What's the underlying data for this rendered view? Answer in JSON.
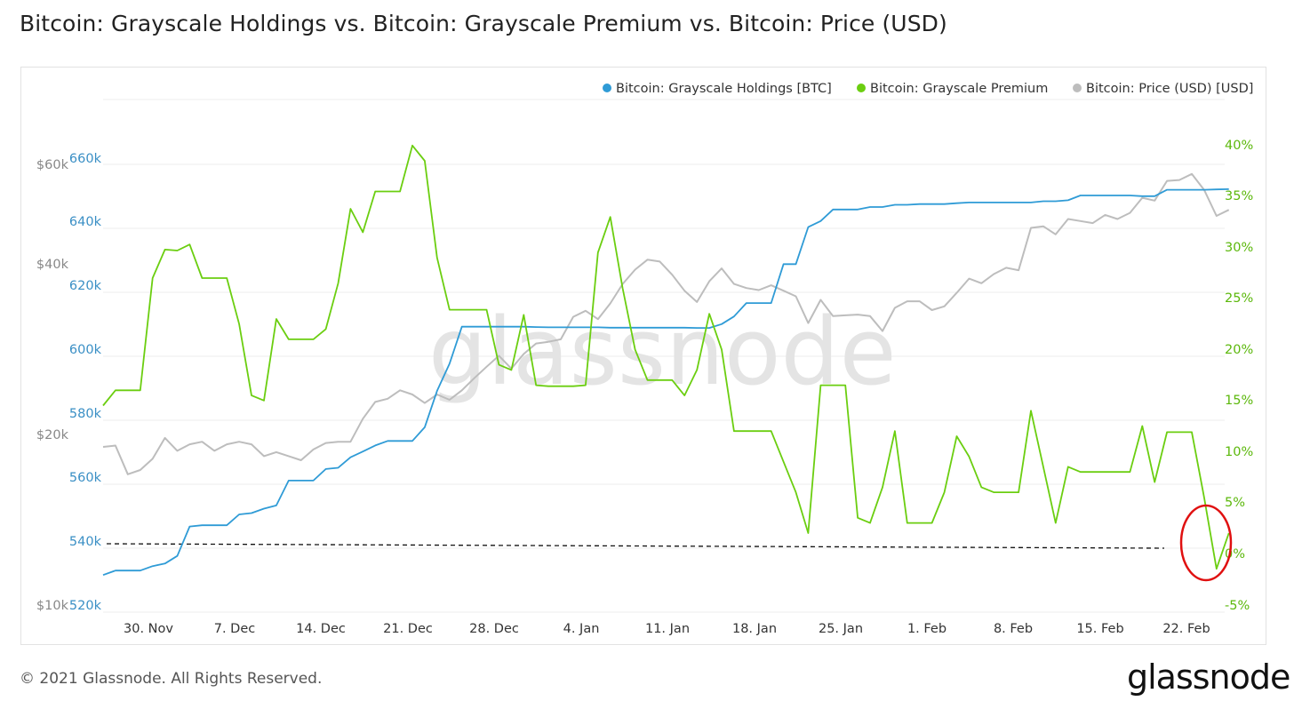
{
  "page": {
    "title": "Bitcoin: Grayscale Holdings vs. Bitcoin: Grayscale Premium vs. Bitcoin: Price (USD)",
    "copyright": "© 2021 Glassnode. All Rights Reserved.",
    "logo": "glassnode",
    "watermark": "glassnode"
  },
  "chart_data": {
    "type": "line",
    "title": "Bitcoin: Grayscale Holdings vs. Bitcoin: Grayscale Premium vs. Bitcoin: Price (USD)",
    "x_tick_labels": [
      "30. Nov",
      "7. Dec",
      "14. Dec",
      "21. Dec",
      "28. Dec",
      "4. Jan",
      "11. Jan",
      "18. Jan",
      "25. Jan",
      "1. Feb",
      "8. Feb",
      "15. Feb",
      "22. Feb"
    ],
    "x": [
      "2020-11-25",
      "2020-11-26",
      "2020-11-27",
      "2020-11-28",
      "2020-11-29",
      "2020-11-30",
      "2020-12-01",
      "2020-12-02",
      "2020-12-03",
      "2020-12-04",
      "2020-12-05",
      "2020-12-06",
      "2020-12-07",
      "2020-12-08",
      "2020-12-09",
      "2020-12-10",
      "2020-12-11",
      "2020-12-12",
      "2020-12-13",
      "2020-12-14",
      "2020-12-15",
      "2020-12-16",
      "2020-12-17",
      "2020-12-18",
      "2020-12-19",
      "2020-12-20",
      "2020-12-21",
      "2020-12-22",
      "2020-12-23",
      "2020-12-24",
      "2020-12-25",
      "2020-12-26",
      "2020-12-27",
      "2020-12-28",
      "2020-12-29",
      "2020-12-30",
      "2020-12-31",
      "2021-01-01",
      "2021-01-02",
      "2021-01-03",
      "2021-01-04",
      "2021-01-05",
      "2021-01-06",
      "2021-01-07",
      "2021-01-08",
      "2021-01-09",
      "2021-01-10",
      "2021-01-11",
      "2021-01-12",
      "2021-01-13",
      "2021-01-14",
      "2021-01-15",
      "2021-01-16",
      "2021-01-17",
      "2021-01-18",
      "2021-01-19",
      "2021-01-20",
      "2021-01-21",
      "2021-01-22",
      "2021-01-23",
      "2021-01-24",
      "2021-01-25",
      "2021-01-26",
      "2021-01-27",
      "2021-01-28",
      "2021-01-29",
      "2021-01-30",
      "2021-01-31",
      "2021-02-01",
      "2021-02-02",
      "2021-02-03",
      "2021-02-04",
      "2021-02-05",
      "2021-02-06",
      "2021-02-07",
      "2021-02-08",
      "2021-02-09",
      "2021-02-10",
      "2021-02-11",
      "2021-02-12",
      "2021-02-13",
      "2021-02-14",
      "2021-02-15",
      "2021-02-16",
      "2021-02-17",
      "2021-02-18",
      "2021-02-19",
      "2021-02-20",
      "2021-02-21",
      "2021-02-22",
      "2021-02-23",
      "2021-02-24"
    ],
    "axes": {
      "holdings": {
        "ticks": [
          "660k",
          "640k",
          "620k",
          "600k",
          "580k",
          "560k",
          "540k",
          "520k"
        ],
        "range": [
          520000,
          660000
        ],
        "color": "#2f9bd6"
      },
      "price": {
        "ticks": [
          "$60k",
          "$40k",
          "$20k",
          "$10k"
        ],
        "scale": "log",
        "color": "#888888"
      },
      "premium": {
        "ticks": [
          "40%",
          "35%",
          "30%",
          "25%",
          "20%",
          "15%",
          "10%",
          "5%",
          "0%",
          "-5%"
        ],
        "range": [
          -5,
          40
        ],
        "unit": "%",
        "color": "#6bce10"
      }
    },
    "series": [
      {
        "name": "Bitcoin: Grayscale Holdings [BTC]",
        "color": "#2f9bd6",
        "axis": "holdings",
        "values": [
          529400,
          530800,
          530800,
          530800,
          532200,
          533000,
          535400,
          544600,
          545000,
          545000,
          545000,
          548400,
          548800,
          550200,
          551200,
          559000,
          559000,
          559000,
          562600,
          563000,
          566300,
          568100,
          570000,
          571400,
          571400,
          571400,
          575700,
          587100,
          595600,
          607200,
          607200,
          607200,
          607200,
          607200,
          607200,
          607100,
          607000,
          607000,
          607000,
          607000,
          607000,
          606900,
          606900,
          606900,
          606900,
          606900,
          606900,
          606900,
          606800,
          606800,
          608000,
          610400,
          614600,
          614600,
          614600,
          626800,
          626800,
          638400,
          640300,
          643900,
          643900,
          643900,
          644700,
          644700,
          645400,
          645400,
          645600,
          645600,
          645600,
          645900,
          646100,
          646100,
          646100,
          646100,
          646100,
          646100,
          646500,
          646500,
          646800,
          648300,
          648300,
          648300,
          648300,
          648300,
          648100,
          648100,
          650100,
          650100,
          650100,
          650100,
          650200,
          650300
        ]
      },
      {
        "name": "Bitcoin: Grayscale Premium",
        "color": "#6bce10",
        "axis": "premium",
        "values": [
          14.5,
          16.0,
          16.0,
          16.0,
          27.0,
          29.8,
          29.7,
          30.3,
          27.0,
          27.0,
          27.0,
          22.5,
          15.5,
          15.0,
          23.0,
          21.0,
          21.0,
          21.0,
          22.0,
          26.5,
          33.8,
          31.5,
          35.5,
          35.5,
          35.5,
          40.0,
          38.5,
          29.0,
          23.9,
          23.9,
          23.9,
          23.9,
          18.5,
          18.0,
          23.4,
          16.5,
          16.4,
          16.4,
          16.4,
          16.5,
          29.5,
          33.0,
          26.0,
          20.0,
          17.0,
          17.0,
          17.0,
          15.5,
          18.0,
          23.5,
          20.0,
          12.0,
          12.0,
          12.0,
          12.0,
          9.0,
          6.0,
          2.0,
          16.5,
          16.5,
          16.5,
          3.5,
          3.0,
          6.5,
          12.0,
          3.0,
          3.0,
          3.0,
          6.0,
          11.5,
          9.5,
          6.5,
          6.0,
          6.0,
          6.0,
          14.0,
          8.5,
          3.0,
          8.5,
          8.0,
          8.0,
          8.0,
          8.0,
          8.0,
          12.5,
          7.0,
          11.9,
          11.9,
          11.9,
          5.5,
          -1.5,
          2.0
        ]
      },
      {
        "name": "Bitcoin: Price (USD) [USD]",
        "color": "#bdbdbd",
        "axis": "price",
        "values": [
          19000,
          19100,
          17000,
          17300,
          18100,
          19700,
          18700,
          19200,
          19400,
          18700,
          19200,
          19400,
          19200,
          18300,
          18600,
          18300,
          18000,
          18800,
          19300,
          19400,
          19400,
          21300,
          22800,
          23100,
          23900,
          23500,
          22700,
          23500,
          23000,
          23900,
          25100,
          26300,
          27500,
          26100,
          27700,
          28900,
          29100,
          29400,
          32200,
          33000,
          31900,
          34000,
          36800,
          39000,
          40600,
          40300,
          38200,
          35800,
          34200,
          37200,
          39200,
          36800,
          36200,
          35900,
          36600,
          35800,
          35000,
          31400,
          34500,
          32300,
          32400,
          32500,
          32300,
          30400,
          33400,
          34300,
          34300,
          33100,
          33600,
          35500,
          37600,
          36900,
          38300,
          39300,
          38900,
          46200,
          46500,
          45000,
          47900,
          47500,
          47100,
          48700,
          47900,
          49100,
          52200,
          51600,
          55900,
          56100,
          57500,
          53900,
          48500,
          49700
        ]
      }
    ],
    "annotations": [
      "dashed-line-premium-0pct",
      "red-circle-recent-premium"
    ]
  },
  "legend": {
    "items": [
      {
        "label": "Bitcoin: Grayscale Holdings [BTC]",
        "color": "#2f9bd6"
      },
      {
        "label": "Bitcoin: Grayscale Premium",
        "color": "#6bce10"
      },
      {
        "label": "Bitcoin: Price (USD) [USD]",
        "color": "#bdbdbd"
      }
    ]
  }
}
